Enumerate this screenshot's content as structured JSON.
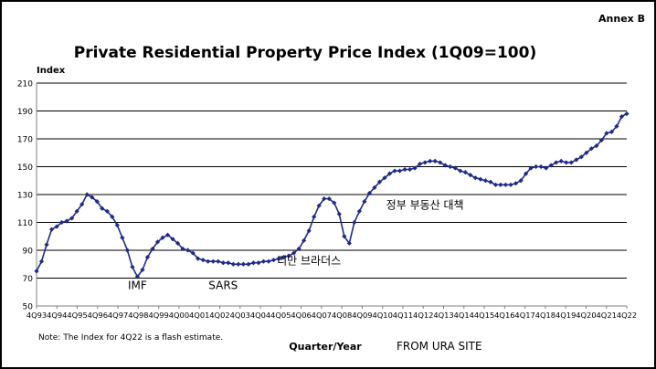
{
  "annex": "Annex B",
  "footnote": "Note: The Index for 4Q22 is a flash estimate.",
  "source": "FROM URA SITE",
  "colors": {
    "series": "#1f2a8c",
    "grid": "#000000",
    "axis": "#808080",
    "text": "#000000"
  },
  "chart_data": {
    "type": "line",
    "title": "Private Residential Property Price Index (1Q09=100)",
    "ylabel": "Index",
    "xlabel": "Quarter/Year",
    "ylim": [
      50,
      210
    ],
    "yticks": [
      50,
      70,
      90,
      110,
      130,
      150,
      170,
      190,
      210
    ],
    "grid": true,
    "legend": "none",
    "x_ticks": [
      "4Q93",
      "4Q94",
      "4Q95",
      "4Q96",
      "4Q97",
      "4Q98",
      "4Q99",
      "4Q00",
      "4Q01",
      "4Q02",
      "4Q03",
      "4Q04",
      "4Q05",
      "4Q06",
      "4Q07",
      "4Q08",
      "4Q09",
      "4Q10",
      "4Q11",
      "4Q12",
      "4Q13",
      "4Q14",
      "4Q15",
      "4Q16",
      "4Q17",
      "4Q18",
      "4Q19",
      "4Q20",
      "4Q21",
      "4Q22"
    ],
    "annotations": [
      {
        "text": "IMF",
        "x": "4Q98",
        "y": 62
      },
      {
        "text": "SARS",
        "x": "1Q03",
        "y": 62
      },
      {
        "text": "리만 브라더스",
        "x": "2Q07",
        "y": 80
      },
      {
        "text": "정부 부동산 대책",
        "x": "1Q13",
        "y": 120
      }
    ],
    "series": [
      {
        "values": [
          75,
          82,
          94,
          105,
          107,
          110,
          111,
          113,
          118,
          123,
          130,
          128,
          125,
          120,
          118,
          114,
          108,
          99,
          90,
          78,
          71,
          76,
          85,
          91,
          96,
          99,
          101,
          98,
          95,
          91,
          90,
          88,
          84,
          83,
          82,
          82,
          82,
          81,
          81,
          80,
          80,
          80,
          80,
          81,
          81,
          82,
          82,
          83,
          84,
          85,
          86,
          88,
          91,
          97,
          104,
          114,
          122,
          127,
          127,
          124,
          116,
          100,
          95,
          110,
          118,
          125,
          131,
          135,
          139,
          142,
          145,
          147,
          147,
          148,
          148,
          149,
          152,
          153,
          154,
          154,
          153,
          151,
          150,
          149,
          147,
          146,
          144,
          142,
          141,
          140,
          139,
          137,
          137,
          137,
          137,
          138,
          140,
          145,
          149,
          150,
          150,
          149,
          151,
          153,
          154,
          153,
          153,
          155,
          157,
          160,
          163,
          165,
          169,
          174,
          175,
          179,
          186,
          188
        ]
      }
    ]
  }
}
